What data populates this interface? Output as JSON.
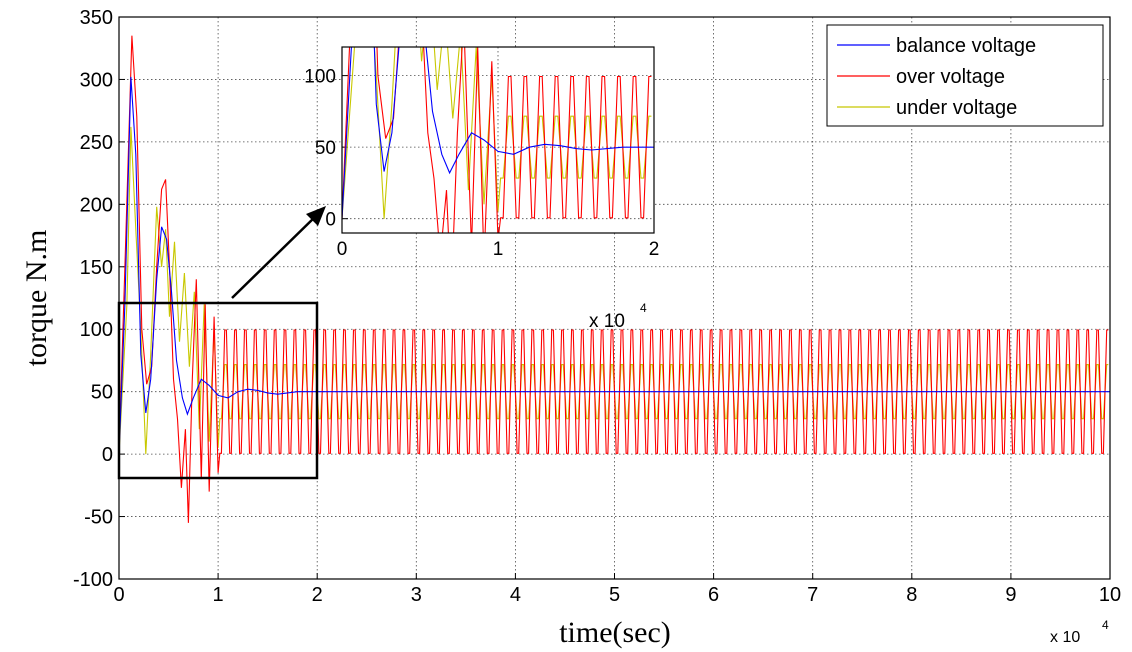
{
  "chart_data": {
    "type": "line",
    "main": {
      "xlabel": "time(sec)",
      "ylabel": "torque N.m",
      "xlim": [
        0,
        100000
      ],
      "ylim": [
        -100,
        350
      ],
      "x_tick_labels": [
        "0",
        "1",
        "2",
        "3",
        "4",
        "5",
        "6",
        "7",
        "8",
        "9",
        "10"
      ],
      "x_exponent_label": "x 10",
      "x_exponent_power": "4",
      "y_tick_labels": [
        "-100",
        "-50",
        "0",
        "50",
        "100",
        "150",
        "200",
        "250",
        "300",
        "350"
      ],
      "grid": true,
      "legend_position": "top-right"
    },
    "inset": {
      "xlim": [
        0,
        20000
      ],
      "ylim": [
        -10,
        120
      ],
      "x_tick_labels": [
        "0",
        "1",
        "2"
      ],
      "x_exponent_label": "x 10",
      "x_exponent_power": "4",
      "y_tick_labels": [
        "0",
        "50",
        "100"
      ],
      "grid": true,
      "zoom_region": {
        "x": [
          0,
          20000
        ],
        "y": [
          -20,
          120
        ]
      }
    },
    "series": [
      {
        "name": "balance voltage",
        "color": "#0000ff",
        "points": [
          [
            0,
            0
          ],
          [
            600,
            120
          ],
          [
            1200,
            302
          ],
          [
            1700,
            240
          ],
          [
            2200,
            80
          ],
          [
            2700,
            33
          ],
          [
            3200,
            60
          ],
          [
            3800,
            140
          ],
          [
            4300,
            182
          ],
          [
            4800,
            172
          ],
          [
            5300,
            130
          ],
          [
            5800,
            75
          ],
          [
            6400,
            45
          ],
          [
            6900,
            32
          ],
          [
            7500,
            45
          ],
          [
            8300,
            60
          ],
          [
            9100,
            55
          ],
          [
            10000,
            47
          ],
          [
            11000,
            45
          ],
          [
            12000,
            50
          ],
          [
            13000,
            52
          ],
          [
            14000,
            51
          ],
          [
            15000,
            49
          ],
          [
            16000,
            48
          ],
          [
            17000,
            49
          ],
          [
            18000,
            50
          ],
          [
            20000,
            50
          ],
          [
            100000,
            50
          ]
        ],
        "steady_state": 50
      },
      {
        "name": "over voltage",
        "color": "#ff0000",
        "points": [
          [
            0,
            0
          ],
          [
            600,
            150
          ],
          [
            1300,
            335
          ],
          [
            1800,
            270
          ],
          [
            2300,
            100
          ],
          [
            2800,
            56
          ],
          [
            3300,
            70
          ],
          [
            3800,
            150
          ],
          [
            4300,
            212
          ],
          [
            4700,
            220
          ],
          [
            5100,
            150
          ],
          [
            5500,
            60
          ],
          [
            5900,
            28
          ],
          [
            6300,
            -27
          ],
          [
            6700,
            20
          ],
          [
            7000,
            -55
          ],
          [
            7400,
            60
          ],
          [
            7800,
            140
          ],
          [
            8300,
            -20
          ],
          [
            8700,
            120
          ],
          [
            9100,
            -30
          ],
          [
            9600,
            110
          ],
          [
            10000,
            -15
          ]
        ],
        "steady_state_center": 50,
        "steady_state_amplitude": 57,
        "period": 1000,
        "transient_end": 10000
      },
      {
        "name": "under voltage",
        "color": "#c8c800",
        "points": [
          [
            0,
            0
          ],
          [
            800,
            120
          ],
          [
            1200,
            262
          ],
          [
            1700,
            180
          ],
          [
            2200,
            100
          ],
          [
            2700,
            0
          ],
          [
            3200,
            80
          ],
          [
            3800,
            198
          ],
          [
            4300,
            150
          ],
          [
            4700,
            180
          ],
          [
            5100,
            110
          ],
          [
            5600,
            170
          ],
          [
            6100,
            90
          ],
          [
            6600,
            145
          ],
          [
            7100,
            70
          ],
          [
            7600,
            130
          ],
          [
            8100,
            20
          ],
          [
            8600,
            120
          ],
          [
            9100,
            10
          ],
          [
            9600,
            100
          ],
          [
            10000,
            5
          ]
        ],
        "steady_state_center": 50,
        "steady_state_amplitude": 25,
        "period": 1000,
        "transient_end": 10000
      }
    ]
  }
}
